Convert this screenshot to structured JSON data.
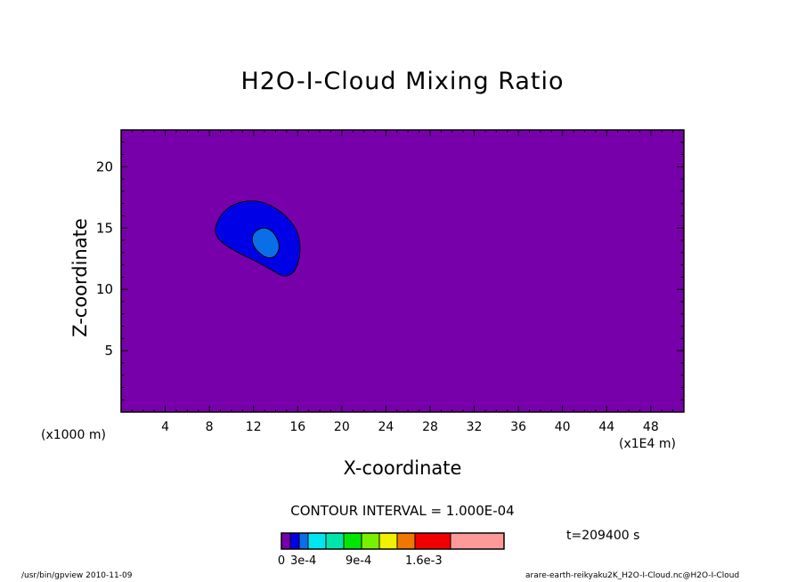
{
  "title": "H2O-I-Cloud Mixing Ratio",
  "chart_data": {
    "type": "contour",
    "title": "H2O-I-Cloud Mixing Ratio",
    "xlabel": "X-coordinate",
    "ylabel": "Z-coordinate",
    "x_unit_left": "(x1000 m)",
    "x_unit_right": "(x1E4 m)",
    "xlim": [
      0,
      51
    ],
    "ylim": [
      0,
      23
    ],
    "x_ticks": [
      4,
      8,
      12,
      16,
      20,
      24,
      28,
      32,
      36,
      40,
      44,
      48
    ],
    "y_ticks": [
      5,
      10,
      15,
      20
    ],
    "background_color": "#7800aa",
    "contours": [
      {
        "level": "1e-4",
        "fill": "#0000e6",
        "points": [
          [
            8.6,
            15.2
          ],
          [
            9.2,
            16.2
          ],
          [
            10.2,
            16.9
          ],
          [
            11.5,
            17.2
          ],
          [
            12.8,
            17.1
          ],
          [
            14.0,
            16.6
          ],
          [
            15.1,
            15.8
          ],
          [
            15.9,
            14.8
          ],
          [
            16.2,
            13.6
          ],
          [
            16.1,
            12.4
          ],
          [
            15.6,
            11.4
          ],
          [
            14.7,
            11.1
          ],
          [
            13.6,
            11.6
          ],
          [
            12.2,
            12.3
          ],
          [
            10.6,
            13.0
          ],
          [
            9.2,
            13.8
          ],
          [
            8.6,
            14.5
          ]
        ]
      },
      {
        "level": "2e-4",
        "fill": "#0a6ee6",
        "points": [
          [
            11.9,
            14.3
          ],
          [
            12.3,
            14.8
          ],
          [
            13.0,
            15.0
          ],
          [
            13.7,
            14.7
          ],
          [
            14.2,
            14.0
          ],
          [
            14.3,
            13.3
          ],
          [
            13.9,
            12.7
          ],
          [
            13.2,
            12.6
          ],
          [
            12.5,
            13.0
          ],
          [
            12.0,
            13.6
          ]
        ]
      }
    ],
    "contour_interval": "CONTOUR INTERVAL = 1.000E-04",
    "colorbar": {
      "colors": [
        "#7800aa",
        "#0000e6",
        "#0a6ee6",
        "#00e6f0",
        "#00e6aa",
        "#00e600",
        "#78f000",
        "#f0f000",
        "#f07800",
        "#f00000",
        "#ff9a9a"
      ],
      "weights": [
        1,
        1,
        1,
        2,
        2,
        2,
        2,
        2,
        2,
        4,
        6
      ],
      "labels": [
        "0",
        "3e-4",
        "9e-4",
        "1.6e-3"
      ],
      "label_boundaries": [
        0,
        3,
        6,
        8
      ]
    },
    "time": "t=209400 s"
  },
  "footer": {
    "left": "/usr/bin/gpview   2010-11-09",
    "right": "arare-earth-reikyaku2K_H2O-I-Cloud.nc@H2O-I-Cloud"
  }
}
